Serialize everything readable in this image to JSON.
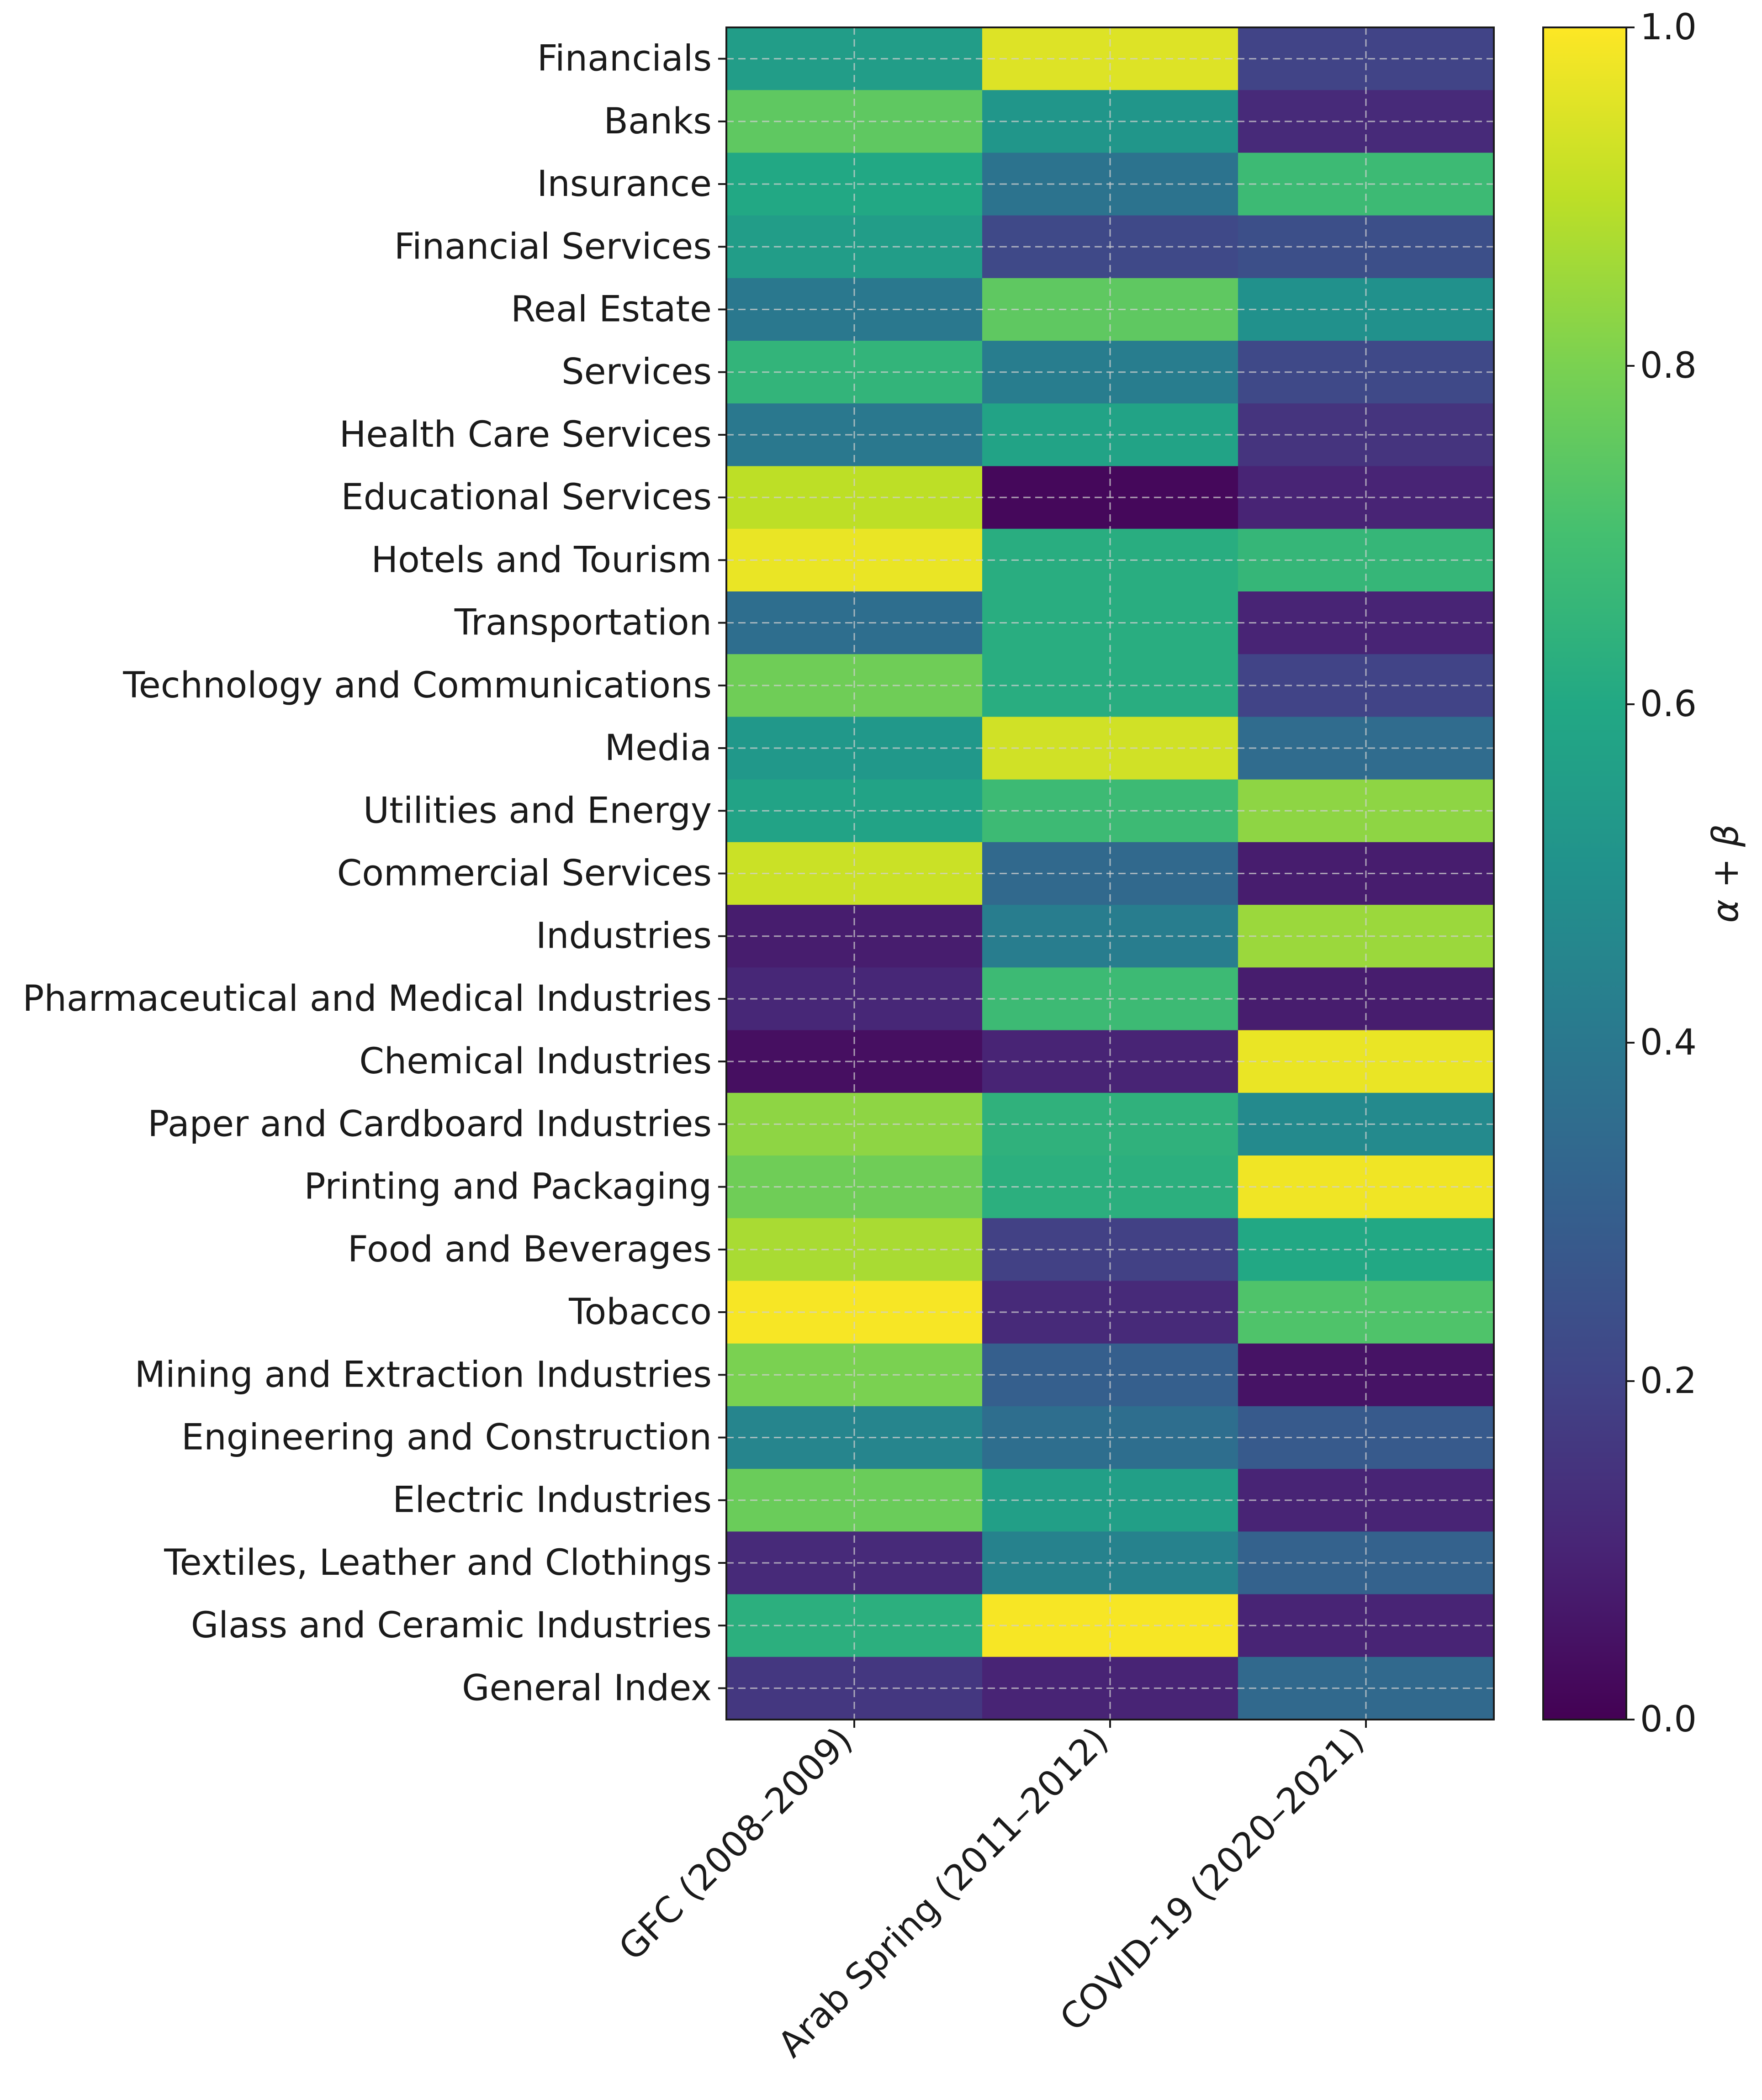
{
  "chart_data": {
    "type": "heatmap",
    "title": "",
    "xlabel": "",
    "ylabel": "",
    "columns": [
      "GFC (2008–2009)",
      "Arab Spring (2011–2012)",
      "COVID-19 (2020–2021)"
    ],
    "rows": [
      "Financials",
      "Banks",
      "Insurance",
      "Financial Services",
      "Real Estate",
      "Services",
      "Health Care Services",
      "Educational Services",
      "Hotels and Tourism",
      "Transportation",
      "Technology and Communications",
      "Media",
      "Utilities and Energy",
      "Commercial Services",
      "Industries",
      "Pharmaceutical and Medical Industries",
      "Chemical Industries",
      "Paper and Cardboard Industries",
      "Printing and Packaging",
      "Food and Beverages",
      "Tobacco",
      "Mining and Extraction Industries",
      "Engineering and Construction",
      "Electric Industries",
      "Textiles, Leather and Clothings",
      "Glass and Ceramic Industries",
      "General Index"
    ],
    "values": [
      [
        0.55,
        0.95,
        0.2
      ],
      [
        0.75,
        0.52,
        0.12
      ],
      [
        0.6,
        0.38,
        0.68
      ],
      [
        0.55,
        0.22,
        0.24
      ],
      [
        0.4,
        0.75,
        0.5
      ],
      [
        0.65,
        0.42,
        0.22
      ],
      [
        0.4,
        0.58,
        0.15
      ],
      [
        0.9,
        0.02,
        0.1
      ],
      [
        0.97,
        0.62,
        0.66
      ],
      [
        0.36,
        0.62,
        0.1
      ],
      [
        0.78,
        0.62,
        0.2
      ],
      [
        0.53,
        0.93,
        0.35
      ],
      [
        0.58,
        0.68,
        0.83
      ],
      [
        0.92,
        0.34,
        0.08
      ],
      [
        0.08,
        0.42,
        0.85
      ],
      [
        0.11,
        0.68,
        0.08
      ],
      [
        0.04,
        0.1,
        0.97
      ],
      [
        0.83,
        0.64,
        0.47
      ],
      [
        0.78,
        0.63,
        0.98
      ],
      [
        0.87,
        0.19,
        0.6
      ],
      [
        0.99,
        0.12,
        0.72
      ],
      [
        0.8,
        0.3,
        0.05
      ],
      [
        0.45,
        0.36,
        0.28
      ],
      [
        0.77,
        0.56,
        0.1
      ],
      [
        0.12,
        0.44,
        0.31
      ],
      [
        0.63,
        0.99,
        0.1
      ],
      [
        0.16,
        0.1,
        0.34
      ]
    ],
    "colorbar": {
      "label": "α + β",
      "min": 0.0,
      "max": 1.0,
      "ticks": [
        "0.0",
        "0.2",
        "0.4",
        "0.6",
        "0.8",
        "1.0"
      ],
      "colormap": "viridis",
      "position": "right"
    },
    "grid": true
  }
}
